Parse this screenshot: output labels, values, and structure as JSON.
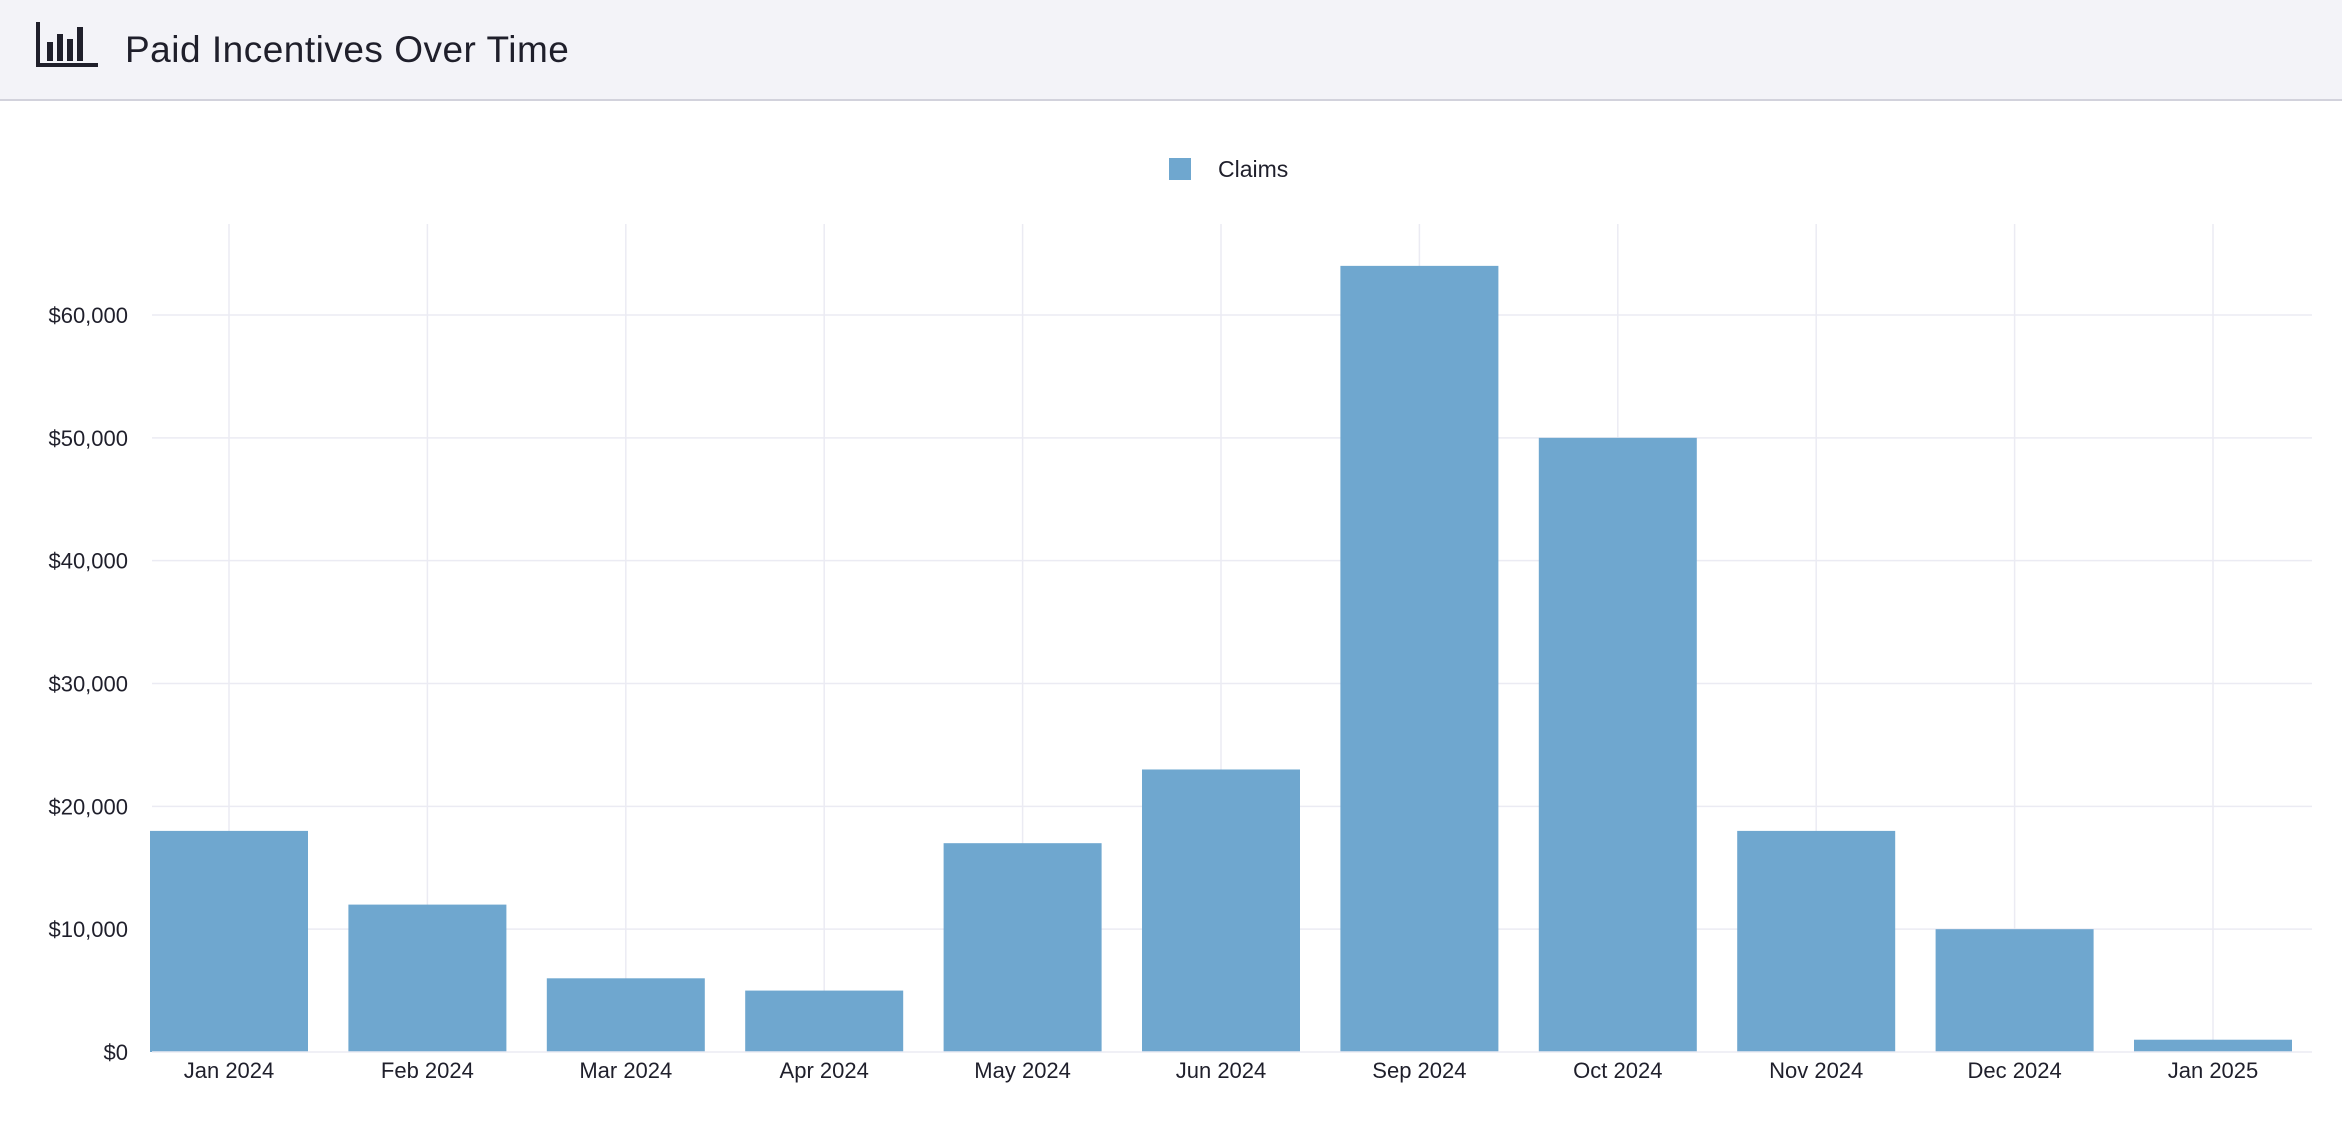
{
  "header": {
    "title": "Paid Incentives Over Time",
    "icon": "bar-chart-icon"
  },
  "chart_data": {
    "type": "bar",
    "title": "Paid Incentives Over Time",
    "xlabel": "",
    "ylabel": "",
    "categories": [
      "Jan 2024",
      "Feb 2024",
      "Mar 2024",
      "Apr 2024",
      "May 2024",
      "Jun 2024",
      "Sep 2024",
      "Oct 2024",
      "Nov 2024",
      "Dec 2024",
      "Jan 2025"
    ],
    "series": [
      {
        "name": "Claims",
        "color": "#6fa7cf",
        "values": [
          18000,
          12000,
          6000,
          5000,
          17000,
          23000,
          64000,
          50000,
          18000,
          10000,
          1000
        ]
      }
    ],
    "yticks": [
      0,
      10000,
      20000,
      30000,
      40000,
      50000,
      60000
    ],
    "ytick_labels": [
      "$0",
      "$10,000",
      "$20,000",
      "$30,000",
      "$40,000",
      "$50,000",
      "$60,000"
    ],
    "ylim": [
      0,
      67500
    ],
    "grid": true,
    "legend_position": "top-center",
    "grid_color": "#ebebf3"
  }
}
